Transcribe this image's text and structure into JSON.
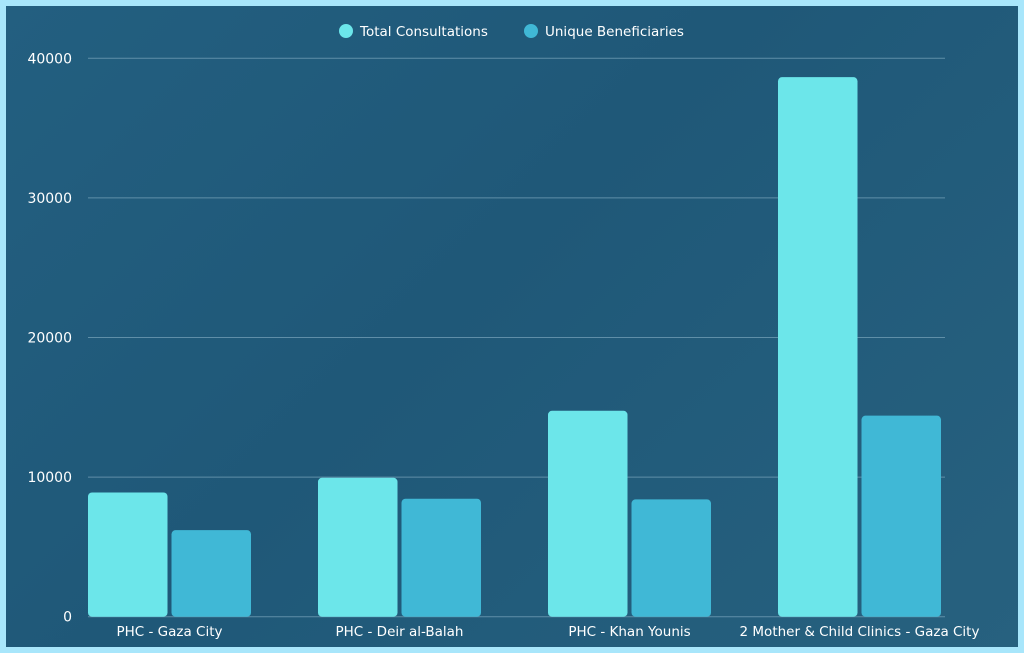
{
  "chart_data": {
    "type": "bar",
    "categories": [
      "PHC - Gaza City",
      "PHC - Deir al-Balah",
      "PHC - Khan Younis",
      "2 Mother & Child Clinics - Gaza City"
    ],
    "series": [
      {
        "name": "Total Consultations",
        "values": [
          8900,
          9950,
          14750,
          38650
        ],
        "color": "#6ce6ea"
      },
      {
        "name": "Unique Beneficiaries",
        "values": [
          6200,
          8450,
          8400,
          14400
        ],
        "color": "#40b8d6"
      }
    ],
    "ylim": [
      0,
      40000
    ],
    "yticks": [
      0,
      10000,
      20000,
      30000,
      40000
    ],
    "grid": true,
    "legend": "top-center",
    "xlabel": "",
    "ylabel": ""
  },
  "colors": {
    "background": "#215b7b",
    "border": "#a8e6fb",
    "text": "#ffffff",
    "grid": "#6f9cb4"
  }
}
